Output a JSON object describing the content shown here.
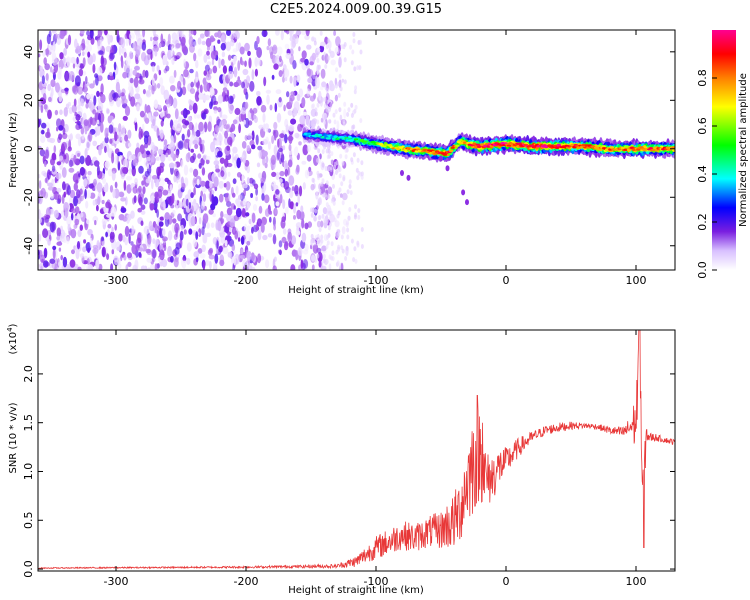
{
  "title": "C2E5.2024.009.00.39.G15",
  "chart_data": [
    {
      "type": "heatmap",
      "xlabel": "Height of straight line (km)",
      "ylabel": "Frequency (Hz)",
      "xlim": [
        -360,
        130
      ],
      "ylim": [
        -50,
        49
      ],
      "xticks": [
        -300,
        -200,
        -100,
        0,
        100
      ],
      "xtick_labels": [
        "-300",
        "-200",
        "-100",
        "0",
        "100"
      ],
      "yticks": [
        -40,
        -20,
        0,
        20,
        40
      ],
      "ytick_labels": [
        "-40",
        "-20",
        "0",
        "20",
        "40"
      ],
      "colorbar": {
        "label": "Normalized spectral amplitude",
        "range": [
          0,
          1
        ],
        "ticks": [
          0,
          0.2,
          0.4,
          0.6,
          0.8
        ],
        "tick_labels": [
          "0.0",
          "0.2",
          "0.4",
          "0.6",
          "0.8"
        ],
        "colormap": [
          "#ffffff",
          "#e0c8ff",
          "#8a2be2",
          "#0000ff",
          "#00ffff",
          "#00ff00",
          "#ffff00",
          "#ff8000",
          "#ff0000",
          "#ff00a0"
        ]
      },
      "noise_region": {
        "x_range": [
          -360,
          -120
        ],
        "y_range": [
          -50,
          49
        ],
        "typical_amplitude": 0.15
      },
      "signal_ridge": {
        "x": [
          -155,
          -140,
          -120,
          -100,
          -80,
          -60,
          -45,
          -35,
          -30,
          -20,
          0,
          20,
          40,
          60,
          80,
          100,
          130
        ],
        "freq": [
          6,
          5,
          4,
          2,
          0,
          -1,
          -2,
          3,
          2,
          1,
          2,
          1,
          1,
          1,
          0,
          0,
          0
        ],
        "peak_amplitude": [
          0.4,
          0.45,
          0.5,
          0.6,
          0.75,
          0.8,
          0.85,
          0.7,
          0.8,
          0.9,
          0.9,
          0.95,
          0.9,
          0.8,
          0.8,
          0.85,
          0.8
        ]
      },
      "grid": false,
      "legend": "none"
    },
    {
      "type": "line",
      "xlabel": "Height of straight line (km)",
      "ylabel": "SNR (10 * v/v)",
      "scale_note": "(x10",
      "scale_exp": "4",
      "scale_close": ")",
      "xlim": [
        -360,
        130
      ],
      "ylim": [
        -0.02,
        2.45
      ],
      "xticks": [
        -300,
        -200,
        -100,
        0,
        100
      ],
      "xtick_labels": [
        "-300",
        "-200",
        "-100",
        "0",
        "100"
      ],
      "yticks": [
        0.0,
        0.5,
        1.0,
        1.5,
        2.0
      ],
      "ytick_labels": [
        "0.0",
        "0.5",
        "1.0",
        "1.5",
        "2.0"
      ],
      "color": "#e83838",
      "envelope": {
        "x": [
          -360,
          -200,
          -130,
          -115,
          -100,
          -90,
          -80,
          -70,
          -60,
          -50,
          -45,
          -40,
          -35,
          -30,
          -25,
          -20,
          -15,
          -10,
          -5,
          0,
          10,
          20,
          30,
          40,
          50,
          60,
          70,
          80,
          90,
          95,
          100,
          103,
          105,
          108,
          110,
          115,
          120,
          130
        ],
        "y": [
          0.01,
          0.02,
          0.03,
          0.08,
          0.22,
          0.28,
          0.35,
          0.32,
          0.38,
          0.4,
          0.45,
          0.48,
          0.62,
          0.9,
          1.1,
          1.2,
          0.9,
          0.95,
          1.05,
          1.1,
          1.25,
          1.35,
          1.42,
          1.45,
          1.47,
          1.47,
          1.46,
          1.42,
          1.4,
          1.45,
          1.5,
          2.4,
          0.6,
          1.4,
          1.35,
          1.35,
          1.33,
          1.3
        ],
        "noise": [
          0.005,
          0.01,
          0.02,
          0.06,
          0.12,
          0.14,
          0.15,
          0.15,
          0.16,
          0.2,
          0.25,
          0.3,
          0.35,
          0.45,
          0.55,
          0.5,
          0.3,
          0.25,
          0.2,
          0.15,
          0.1,
          0.06,
          0.05,
          0.05,
          0.04,
          0.03,
          0.03,
          0.04,
          0.06,
          0.1,
          0.3,
          0.5,
          0.4,
          0.1,
          0.05,
          0.04,
          0.03,
          0.03
        ]
      },
      "spikes": [
        {
          "x": -22,
          "y": 1.78
        },
        {
          "x": -18,
          "y": 1.5
        },
        {
          "x": 103,
          "y": 2.45
        },
        {
          "x": 106,
          "y": 0.22
        }
      ],
      "grid": false,
      "legend": "none"
    }
  ]
}
